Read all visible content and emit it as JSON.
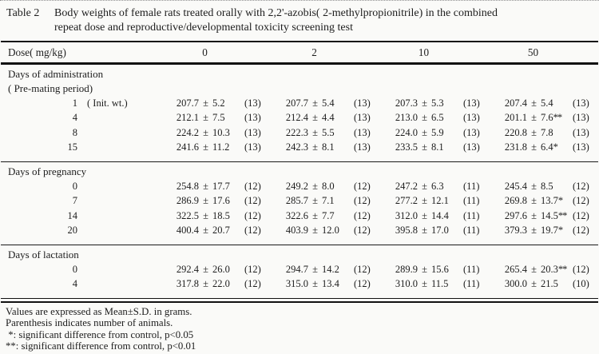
{
  "title": {
    "label": "Table 2",
    "lines": [
      "Body weights of female rats treated orally with 2,2'-azobis( 2-methylpropionitrile)  in the combined",
      "repeat dose and reproductive/developmental toxicity screening test"
    ]
  },
  "table": {
    "dose_header": "Dose( mg/kg)",
    "dose_columns": [
      "0",
      "2",
      "10",
      "50"
    ],
    "plus_minus": "±",
    "sections": [
      {
        "heading_lines": [
          "Days of administration",
          "( Pre-mating period)"
        ],
        "rows": [
          {
            "day": "1",
            "note": "( Init. wt.)",
            "cells": [
              {
                "mean": "207.7",
                "sd": "5.2",
                "mark": "",
                "n": "(13)"
              },
              {
                "mean": "207.7",
                "sd": "5.4",
                "mark": "",
                "n": "(13)"
              },
              {
                "mean": "207.3",
                "sd": "5.3",
                "mark": "",
                "n": "(13)"
              },
              {
                "mean": "207.4",
                "sd": "5.4",
                "mark": "",
                "n": "(13)"
              }
            ]
          },
          {
            "day": "4",
            "note": "",
            "cells": [
              {
                "mean": "212.1",
                "sd": "7.5",
                "mark": "",
                "n": "(13)"
              },
              {
                "mean": "212.4",
                "sd": "4.4",
                "mark": "",
                "n": "(13)"
              },
              {
                "mean": "213.0",
                "sd": "6.5",
                "mark": "",
                "n": "(13)"
              },
              {
                "mean": "201.1",
                "sd": "7.6",
                "mark": "**",
                "n": "(13)"
              }
            ]
          },
          {
            "day": "8",
            "note": "",
            "cells": [
              {
                "mean": "224.2",
                "sd": "10.3",
                "mark": "",
                "n": "(13)"
              },
              {
                "mean": "222.3",
                "sd": "5.5",
                "mark": "",
                "n": "(13)"
              },
              {
                "mean": "224.0",
                "sd": "5.9",
                "mark": "",
                "n": "(13)"
              },
              {
                "mean": "220.8",
                "sd": "7.8",
                "mark": "",
                "n": "(13)"
              }
            ]
          },
          {
            "day": "15",
            "note": "",
            "cells": [
              {
                "mean": "241.6",
                "sd": "11.2",
                "mark": "",
                "n": "(13)"
              },
              {
                "mean": "242.3",
                "sd": "8.1",
                "mark": "",
                "n": "(13)"
              },
              {
                "mean": "233.5",
                "sd": "8.1",
                "mark": "",
                "n": "(13)"
              },
              {
                "mean": "231.8",
                "sd": "6.4",
                "mark": "*",
                "n": "(13)"
              }
            ]
          }
        ]
      },
      {
        "heading_lines": [
          "Days of pregnancy"
        ],
        "rows": [
          {
            "day": "0",
            "note": "",
            "cells": [
              {
                "mean": "254.8",
                "sd": "17.7",
                "mark": "",
                "n": "(12)"
              },
              {
                "mean": "249.2",
                "sd": "8.0",
                "mark": "",
                "n": "(12)"
              },
              {
                "mean": "247.2",
                "sd": "6.3",
                "mark": "",
                "n": "(11)"
              },
              {
                "mean": "245.4",
                "sd": "8.5",
                "mark": "",
                "n": "(12)"
              }
            ]
          },
          {
            "day": "7",
            "note": "",
            "cells": [
              {
                "mean": "286.9",
                "sd": "17.6",
                "mark": "",
                "n": "(12)"
              },
              {
                "mean": "285.7",
                "sd": "7.1",
                "mark": "",
                "n": "(12)"
              },
              {
                "mean": "277.2",
                "sd": "12.1",
                "mark": "",
                "n": "(11)"
              },
              {
                "mean": "269.8",
                "sd": "13.7",
                "mark": "*",
                "n": "(12)"
              }
            ]
          },
          {
            "day": "14",
            "note": "",
            "cells": [
              {
                "mean": "322.5",
                "sd": "18.5",
                "mark": "",
                "n": "(12)"
              },
              {
                "mean": "322.6",
                "sd": "7.7",
                "mark": "",
                "n": "(12)"
              },
              {
                "mean": "312.0",
                "sd": "14.4",
                "mark": "",
                "n": "(11)"
              },
              {
                "mean": "297.6",
                "sd": "14.5",
                "mark": "**",
                "n": "(12)"
              }
            ]
          },
          {
            "day": "20",
            "note": "",
            "cells": [
              {
                "mean": "400.4",
                "sd": "20.7",
                "mark": "",
                "n": "(12)"
              },
              {
                "mean": "403.9",
                "sd": "12.0",
                "mark": "",
                "n": "(12)"
              },
              {
                "mean": "395.8",
                "sd": "17.0",
                "mark": "",
                "n": "(11)"
              },
              {
                "mean": "379.3",
                "sd": "19.7",
                "mark": "*",
                "n": "(12)"
              }
            ]
          }
        ]
      },
      {
        "heading_lines": [
          "Days of lactation"
        ],
        "rows": [
          {
            "day": "0",
            "note": "",
            "cells": [
              {
                "mean": "292.4",
                "sd": "26.0",
                "mark": "",
                "n": "(12)"
              },
              {
                "mean": "294.7",
                "sd": "14.2",
                "mark": "",
                "n": "(12)"
              },
              {
                "mean": "289.9",
                "sd": "15.6",
                "mark": "",
                "n": "(11)"
              },
              {
                "mean": "265.4",
                "sd": "20.3",
                "mark": "**",
                "n": "(12)"
              }
            ]
          },
          {
            "day": "4",
            "note": "",
            "cells": [
              {
                "mean": "317.8",
                "sd": "22.0",
                "mark": "",
                "n": "(12)"
              },
              {
                "mean": "315.0",
                "sd": "13.4",
                "mark": "",
                "n": "(12)"
              },
              {
                "mean": "310.0",
                "sd": "11.5",
                "mark": "",
                "n": "(11)"
              },
              {
                "mean": "300.0",
                "sd": "21.5",
                "mark": "",
                "n": "(10)"
              }
            ]
          }
        ]
      }
    ]
  },
  "footnotes": [
    "Values are expressed as Mean±S.D. in grams.",
    "Parenthesis indicates number of animals.",
    " *: significant difference from control, p<0.05",
    "**: significant difference from control, p<0.01"
  ]
}
